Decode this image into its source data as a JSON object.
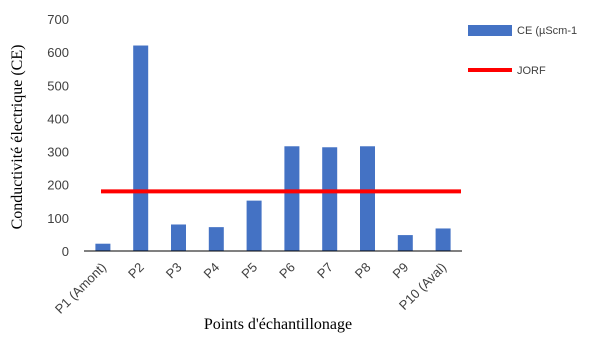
{
  "chart_data": {
    "type": "bar",
    "xlabel": "Points d'échantillonage",
    "ylabel": "Conductivité électrique (CE)",
    "categories": [
      "P1 (Amont)",
      "P2",
      "P3",
      "P4",
      "P5",
      "P6",
      "P7",
      "P8",
      "P9",
      "P10 (Aval)"
    ],
    "series": [
      {
        "name": "CE  (µScm-1",
        "values": [
          22,
          620,
          80,
          72,
          152,
          316,
          313,
          316,
          48,
          68
        ],
        "color": "#4472c4"
      }
    ],
    "reference_line": {
      "name": "JORF",
      "value": 180,
      "color": "#ff0000"
    },
    "ylim": [
      0,
      700
    ],
    "yticks": [
      0,
      100,
      200,
      300,
      400,
      500,
      600,
      700
    ],
    "grid": false,
    "legend_position": "top-right"
  }
}
